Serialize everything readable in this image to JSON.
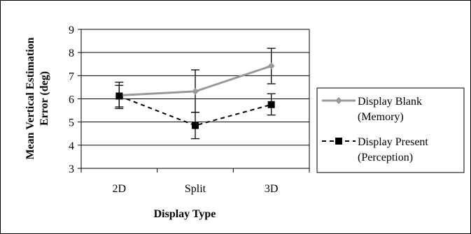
{
  "chart_data": {
    "type": "line",
    "categories": [
      "2D",
      "Split",
      "3D"
    ],
    "xlabel": "Display Type",
    "ylabel_lines": [
      "Mean Vertical Estimation",
      "Error (deg)"
    ],
    "ylim": [
      3,
      9
    ],
    "yticks": [
      "3",
      "4",
      "5",
      "6",
      "7",
      "8",
      "9"
    ],
    "grid": true,
    "legend_position": "right",
    "series": [
      {
        "name_lines": [
          "Display Blank",
          "(Memory)"
        ],
        "values": [
          6.15,
          6.32,
          7.42
        ],
        "err_low": [
          5.58,
          5.42,
          6.65
        ],
        "err_high": [
          6.72,
          7.25,
          8.18
        ],
        "color": "#999999",
        "line_style": "solid",
        "marker": "diamond"
      },
      {
        "name_lines": [
          "Display Present",
          "(Perception)"
        ],
        "values": [
          6.12,
          4.85,
          5.75
        ],
        "err_low": [
          5.65,
          4.28,
          5.3
        ],
        "err_high": [
          6.58,
          5.42,
          6.22
        ],
        "color": "#000000",
        "line_style": "dashed",
        "marker": "square"
      }
    ]
  }
}
